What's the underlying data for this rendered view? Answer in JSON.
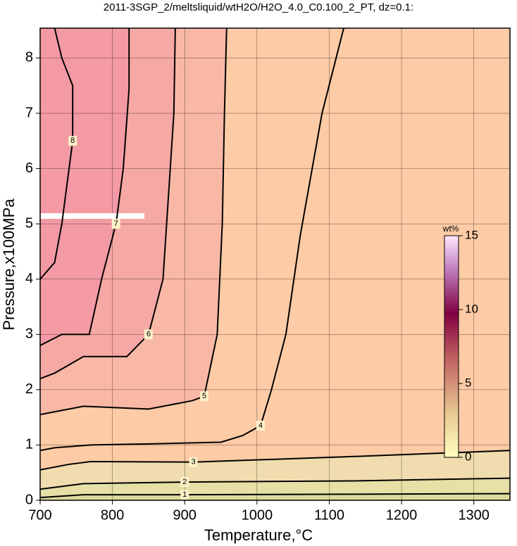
{
  "chart_data": {
    "type": "contour",
    "title": "2011-3SGP_2/meltsliquid/wtH2O/H2O_4.0_C0.100_2_PT, dz=0.1:",
    "x_label": "Temperature,°C",
    "y_label": "Pressure,x100MPa",
    "xlim": [
      700,
      1350
    ],
    "xticks": [
      700,
      800,
      900,
      1000,
      1100,
      1200,
      1300
    ],
    "ylim": [
      0,
      8.54
    ],
    "yticks": [
      0,
      1,
      2,
      3,
      4,
      5,
      6,
      7,
      8
    ],
    "grid": true,
    "series": [
      {
        "name": "1",
        "color": "#000000",
        "x": [
          700,
          760,
          900,
          1130,
          1350
        ],
        "values": [
          0.05,
          0.1,
          0.1,
          0.11,
          0.12
        ]
      },
      {
        "name": "2",
        "color": "#000000",
        "x": [
          700,
          760,
          900,
          1130,
          1350
        ],
        "values": [
          0.2,
          0.3,
          0.33,
          0.35,
          0.4
        ]
      },
      {
        "name": "3",
        "color": "#000000",
        "x": [
          700,
          740,
          770,
          912,
          1131,
          1350
        ],
        "values": [
          0.55,
          0.65,
          0.7,
          0.69,
          0.79,
          0.9
        ]
      },
      {
        "name": "4",
        "color": "#000000",
        "x": [
          700,
          720,
          770,
          850,
          950,
          980,
          1005,
          1020,
          1040,
          1060,
          1090,
          1120
        ],
        "values": [
          0.9,
          0.95,
          1.0,
          1.02,
          1.05,
          1.17,
          1.35,
          2.0,
          3.0,
          4.8,
          7.0,
          8.54
        ]
      },
      {
        "name": "5",
        "color": "#000000",
        "x": [
          700,
          720,
          760,
          850,
          910,
          927,
          945,
          952,
          955,
          958
        ],
        "values": [
          1.55,
          1.6,
          1.7,
          1.65,
          1.8,
          1.88,
          3.0,
          5.0,
          7.0,
          8.54
        ]
      },
      {
        "name": "6",
        "color": "#000000",
        "x": [
          700,
          720,
          760,
          820,
          850,
          870,
          880,
          885,
          887
        ],
        "values": [
          2.2,
          2.3,
          2.6,
          2.6,
          3.0,
          4.0,
          6.0,
          7.0,
          8.54
        ]
      },
      {
        "name": "7",
        "color": "#000000",
        "x": [
          700,
          730,
          768,
          785,
          805,
          815,
          823,
          823
        ],
        "values": [
          2.8,
          3.0,
          3.0,
          4.0,
          5.0,
          6.0,
          7.44,
          8.54
        ]
      },
      {
        "name": "8",
        "color": "#000000",
        "x": [
          700,
          720,
          730,
          745,
          745,
          730,
          720
        ],
        "values": [
          4.0,
          4.3,
          5.0,
          6.5,
          7.5,
          8.0,
          8.54
        ]
      }
    ],
    "colorbar": {
      "label": "wt%",
      "lim": [
        0,
        15
      ],
      "ticks": [
        0,
        5,
        10,
        15
      ]
    }
  }
}
